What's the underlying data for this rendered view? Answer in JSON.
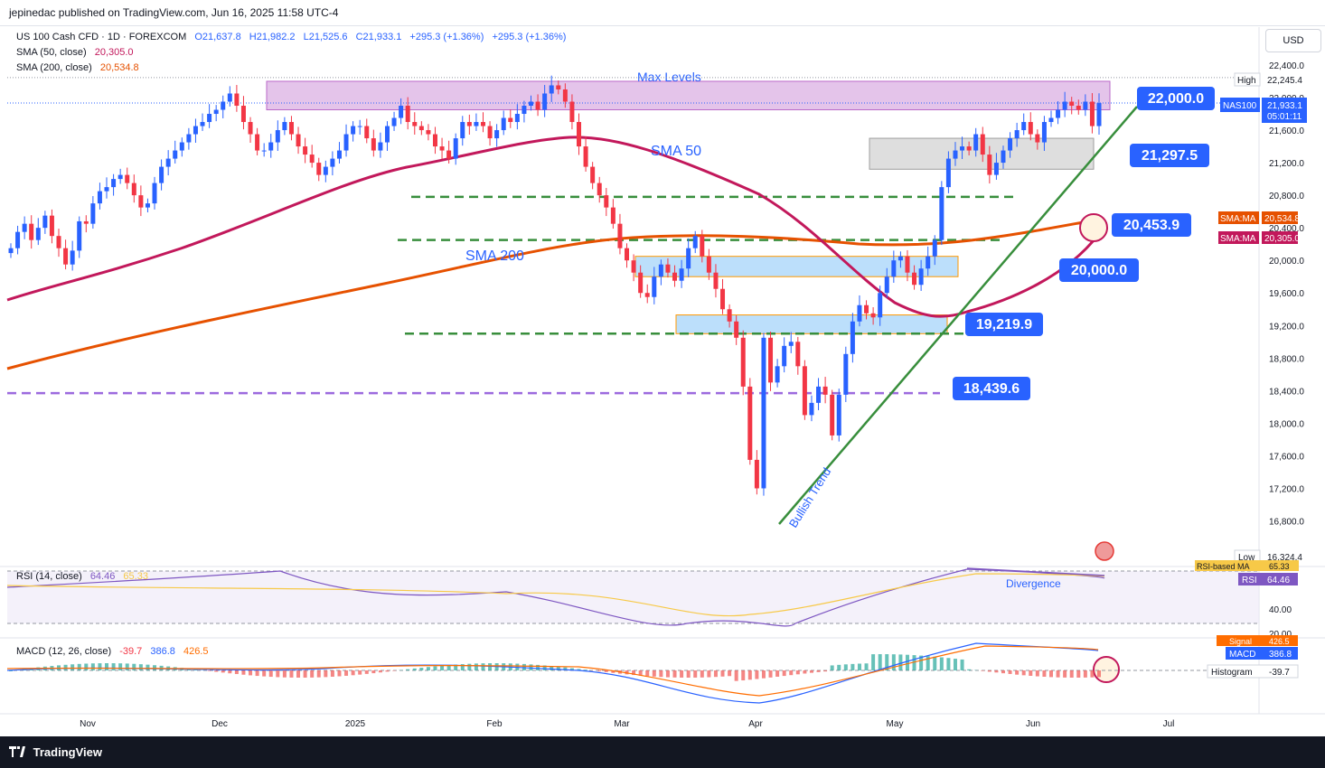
{
  "publisher": "jepinedac published on TradingView.com, Jun 16, 2025 11:58 UTC-4",
  "legend": {
    "symbol": "US 100 Cash CFD · 1D · FOREXCOM",
    "open": "O21,637.8",
    "high": "H21,982.2",
    "low": "L21,525.6",
    "close": "C21,933.1",
    "change": "+295.3 (+1.36%)",
    "change2": "+295.3 (+1.36%)",
    "sma50_label": "SMA (50, close)",
    "sma50_value": "20,305.0",
    "sma200_label": "SMA (200, close)",
    "sma200_value": "20,534.8"
  },
  "currency": "USD",
  "price_axis": {
    "ticks": [
      "22,400.0",
      "22,000.0",
      "21,600.0",
      "21,200.0",
      "20,800.0",
      "20,400.0",
      "20,000.0",
      "19,600.0",
      "19,200.0",
      "18,800.0",
      "18,400.0",
      "18,000.0",
      "17,600.0",
      "17,200.0",
      "16,800.0"
    ],
    "high_tag": "High",
    "high_value": "22,245.4",
    "low_tag": "Low",
    "low_value": "16,324.4",
    "symbol_tag": "NAS100",
    "last_price": "21,933.1",
    "countdown": "05:01:11",
    "sma_tag_1": "SMA:MA",
    "sma_tag_1_value": "20,534.8",
    "sma_tag_2": "SMA:MA",
    "sma_tag_2_value": "20,305.0"
  },
  "time_axis": [
    "Nov",
    "Dec",
    "2025",
    "Feb",
    "Mar",
    "Apr",
    "May",
    "Jun",
    "Jul"
  ],
  "annotations": {
    "max_levels": "Max Levels",
    "sma50": "SMA 50",
    "sma200": "SMA 200",
    "bullish_trend": "Bullish Trend",
    "divergence": "Divergence",
    "level_22000": "22,000.0",
    "level_21297": "21,297.5",
    "level_20453": "20,453.9",
    "level_20000": "20,000.0",
    "level_19219": "19,219.9",
    "level_18439": "18,439.6"
  },
  "rsi": {
    "label": "RSI (14, close)",
    "value": "64.46",
    "ma_value": "65.33",
    "ma_tag": "RSI-based MA",
    "rsi_tag": "RSI",
    "axis_40": "40.00",
    "axis_20": "20.00"
  },
  "macd": {
    "label": "MACD (12, 26, close)",
    "hist": "-39.7",
    "macd": "386.8",
    "signal": "426.5",
    "signal_tag": "Signal",
    "macd_tag": "MACD",
    "hist_tag": "Histogram"
  },
  "colors": {
    "up": "#2962ff",
    "down": "#f23645",
    "sma50": "#c2185b",
    "sma200": "#e65100",
    "trend": "#388e3c",
    "dash_green": "#388e3c",
    "dash_purple": "#9c6ade",
    "label_blue": "#2962ff"
  },
  "brand": "TradingView",
  "chart_data": {
    "type": "candlestick",
    "symbol": "US 100 Cash CFD",
    "timeframe": "1D",
    "ylim": [
      16324.4,
      22245.4
    ],
    "x_ticks": [
      "Nov",
      "Dec",
      "2025",
      "Feb",
      "Mar",
      "Apr",
      "May",
      "Jun",
      "Jul"
    ],
    "closes": [
      20150,
      20350,
      20450,
      20250,
      20400,
      20550,
      20300,
      20150,
      19950,
      20120,
      20480,
      20450,
      20700,
      20850,
      20900,
      21000,
      21050,
      20950,
      20800,
      20650,
      20700,
      20950,
      21150,
      21250,
      21350,
      21450,
      21550,
      21650,
      21700,
      21800,
      21850,
      21950,
      22050,
      21900,
      21700,
      21550,
      21350,
      21350,
      21450,
      21600,
      21700,
      21550,
      21400,
      21300,
      21200,
      21050,
      21150,
      21250,
      21350,
      21550,
      21650,
      21650,
      21500,
      21350,
      21450,
      21650,
      21750,
      21900,
      21700,
      21650,
      21600,
      21550,
      21400,
      21350,
      21250,
      21500,
      21700,
      21650,
      21700,
      21650,
      21500,
      21600,
      21750,
      21700,
      21800,
      21900,
      21950,
      21850,
      22050,
      22150,
      22100,
      21950,
      21700,
      21400,
      21150,
      20950,
      20800,
      20650,
      20450,
      20150,
      20000,
      19850,
      19600,
      19550,
      19800,
      19950,
      19850,
      19750,
      19900,
      20150,
      20300,
      20050,
      19850,
      19650,
      19400,
      19250,
      19050,
      18450,
      17550,
      17200,
      19050,
      18500,
      18700,
      18950,
      19000,
      18700,
      18100,
      18250,
      18450,
      18350,
      17850,
      18350,
      18850,
      19250,
      19450,
      19350,
      19300,
      19600,
      19800,
      20000,
      20050,
      19850,
      19700,
      19900,
      20050,
      20250,
      20900,
      21250,
      21350,
      21400,
      21350,
      21550,
      21300,
      21050,
      21200,
      21350,
      21500,
      21600,
      21700,
      21550,
      21450,
      21700,
      21750,
      21850,
      21950,
      21900,
      21850,
      21950,
      21650,
      21933
    ],
    "sma50_last": 20305.0,
    "sma200_last": 20534.8,
    "levels": {
      "resistance_max": 22000.0,
      "level_1": 21297.5,
      "sma200_level": 20453.9,
      "sma50_level": 20000.0,
      "support_1": 19219.9,
      "support_2": 18439.6
    },
    "rsi": {
      "value": 64.46,
      "ma": 65.33
    },
    "macd": {
      "macd": 386.8,
      "signal": 426.5,
      "histogram": -39.7
    }
  }
}
